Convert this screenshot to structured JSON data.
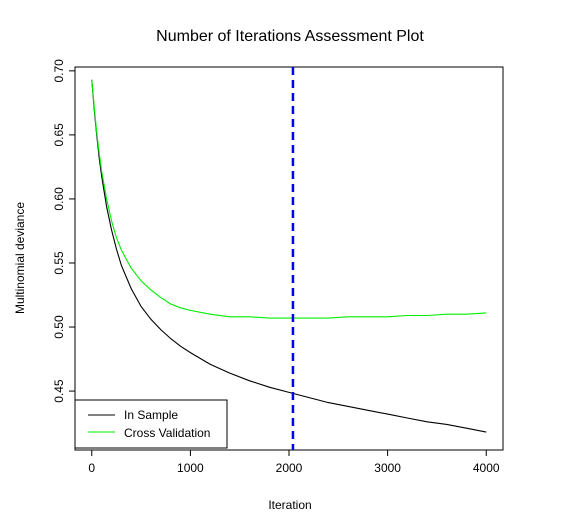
{
  "chart_data": {
    "type": "line",
    "title": "Number of Iterations Assessment Plot",
    "xlabel": "Iteration",
    "ylabel": "Multinomial deviance",
    "xlim": [
      -170,
      4170
    ],
    "ylim": [
      0.404,
      0.703
    ],
    "x_ticks": [
      0,
      1000,
      2000,
      3000,
      4000
    ],
    "y_ticks": [
      0.45,
      0.5,
      0.55,
      0.6,
      0.65,
      0.7
    ],
    "y_tick_labels": [
      "0.45",
      "0.50",
      "0.55",
      "0.60",
      "0.65",
      "0.70"
    ],
    "grid": false,
    "legend_position": "bottom-left",
    "series": [
      {
        "name": "In Sample",
        "color": "#000000",
        "x": [
          0,
          25,
          50,
          75,
          100,
          150,
          200,
          250,
          300,
          400,
          500,
          600,
          700,
          800,
          900,
          1000,
          1200,
          1400,
          1600,
          1800,
          2000,
          2200,
          2400,
          2600,
          2800,
          3000,
          3200,
          3400,
          3600,
          3800,
          4000
        ],
        "y": [
          0.693,
          0.67,
          0.65,
          0.632,
          0.618,
          0.594,
          0.576,
          0.561,
          0.548,
          0.53,
          0.516,
          0.506,
          0.498,
          0.491,
          0.485,
          0.48,
          0.471,
          0.464,
          0.458,
          0.453,
          0.449,
          0.445,
          0.441,
          0.438,
          0.435,
          0.432,
          0.429,
          0.426,
          0.424,
          0.421,
          0.418
        ]
      },
      {
        "name": "Cross Validation",
        "color": "#00ee00",
        "x": [
          0,
          25,
          50,
          75,
          100,
          150,
          200,
          250,
          300,
          400,
          500,
          600,
          700,
          800,
          900,
          1000,
          1200,
          1400,
          1600,
          1800,
          2000,
          2200,
          2400,
          2600,
          2800,
          3000,
          3200,
          3400,
          3600,
          3800,
          4000
        ],
        "y": [
          0.693,
          0.672,
          0.652,
          0.636,
          0.622,
          0.6,
          0.583,
          0.57,
          0.56,
          0.546,
          0.536,
          0.529,
          0.523,
          0.518,
          0.515,
          0.513,
          0.51,
          0.508,
          0.508,
          0.507,
          0.507,
          0.507,
          0.507,
          0.508,
          0.508,
          0.508,
          0.509,
          0.509,
          0.51,
          0.51,
          0.511
        ]
      }
    ],
    "reference_line": {
      "x": 2040,
      "color": "#0000ee",
      "style": "dashed"
    }
  }
}
